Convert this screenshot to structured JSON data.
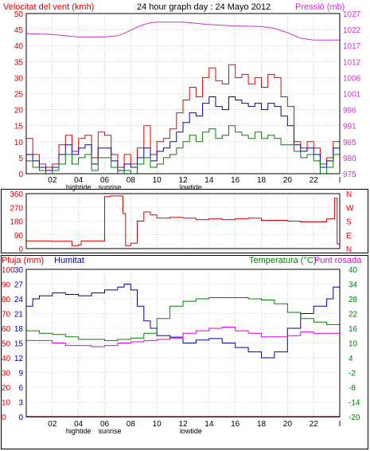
{
  "header": {
    "left_label": "Velocitat del vent (kmh)",
    "title": "24 hour graph day : 24 Mayo 2012",
    "right_label": "Pressió (mb)"
  },
  "bottom_header": {
    "pluja_label": "Pluja (mm)",
    "humitat_label": "Humitat",
    "temperatura_label": "Temperatura (°C)",
    "punt_rosada_label": "Punt rosada"
  },
  "colors": {
    "wind_gust": "#ee0000",
    "wind_avg": "#0000cc",
    "wind_low": "#008000",
    "pressure": "#cc33cc",
    "direction": "#dd0000",
    "humidity": "#0000aa",
    "temperature": "#008000",
    "dewpoint": "#dd00dd",
    "rain": "#dd0000",
    "grid": "#a8a8a8",
    "frame": "#000000"
  },
  "x_axis": {
    "tick_labels": [
      "02",
      "04",
      "06",
      "08",
      "10",
      "12",
      "14",
      "16",
      "18",
      "20",
      "22",
      "I"
    ],
    "tick_hours": [
      2,
      4,
      6,
      8,
      10,
      12,
      14,
      16,
      18,
      20,
      22,
      24
    ],
    "markers": [
      {
        "label": "hightide",
        "hour": 4.0
      },
      {
        "label": "sunrise",
        "hour": 6.4
      },
      {
        "label": "lowtide",
        "hour": 12.6
      }
    ]
  },
  "chart_data": [
    {
      "type": "line",
      "x_range": [
        0,
        24
      ],
      "left_axis": {
        "ylim": [
          0,
          50
        ],
        "ticks": [
          "0",
          "5",
          "10",
          "15",
          "20",
          "25",
          "30",
          "35",
          "40",
          "45",
          "50"
        ]
      },
      "right_axis": {
        "ylim": [
          974,
          1026
        ],
        "ticks": [
          "975",
          "980",
          "985",
          "991",
          "996",
          "1001",
          "1006",
          "1012",
          "1017",
          "1022",
          "1027"
        ]
      },
      "series": [
        {
          "axis": "right",
          "x": [
            0,
            2,
            4,
            6,
            7,
            7.5,
            8,
            8.5,
            9,
            9.5,
            10,
            12,
            14,
            16,
            18,
            19,
            20,
            21,
            22,
            23,
            24
          ],
          "values": [
            1019.5,
            1019.2,
            1018.4,
            1018.4,
            1018.8,
            1019.6,
            1020.6,
            1021.6,
            1022.4,
            1023.0,
            1023.2,
            1023.2,
            1022.4,
            1022.0,
            1021.8,
            1021.2,
            1019.8,
            1018.0,
            1017.4,
            1017.4,
            1017.4
          ]
        },
        {
          "axis": "left",
          "x": [
            0,
            0.5,
            1,
            1.5,
            2,
            2.5,
            3,
            3.5,
            4,
            4.5,
            5,
            5.5,
            6,
            6.5,
            7,
            7.5,
            8,
            8.5,
            9,
            9.5,
            10,
            10.5,
            11,
            11.5,
            12,
            12.5,
            13,
            13.5,
            14,
            14.5,
            15,
            15.5,
            16,
            16.5,
            17,
            17.5,
            18,
            18.5,
            19,
            19.5,
            20,
            20.5,
            21,
            21.5,
            22,
            22.5,
            23,
            23.5,
            24
          ],
          "values": [
            11,
            6,
            3,
            2,
            3,
            9,
            12,
            7,
            11,
            12,
            5,
            13,
            12,
            6,
            2,
            6,
            3,
            8,
            15,
            6,
            10,
            11,
            14,
            19,
            23,
            27,
            24,
            30,
            33,
            29,
            28,
            34,
            30,
            31,
            28,
            30,
            27,
            31,
            30,
            24,
            21,
            10,
            8,
            10,
            8,
            3,
            5,
            10,
            14
          ]
        },
        {
          "axis": "left",
          "x": [
            0,
            0.5,
            1,
            1.5,
            2,
            2.5,
            3,
            3.5,
            4,
            4.5,
            5,
            5.5,
            6,
            6.5,
            7,
            7.5,
            8,
            8.5,
            9,
            9.5,
            10,
            10.5,
            11,
            11.5,
            12,
            12.5,
            13,
            13.5,
            14,
            14.5,
            15,
            15.5,
            16,
            16.5,
            17,
            17.5,
            18,
            18.5,
            19,
            19.5,
            20,
            20.5,
            21,
            21.5,
            22,
            22.5,
            23,
            23.5,
            24
          ],
          "values": [
            6,
            4,
            2,
            1,
            2,
            6,
            9,
            6,
            8,
            9,
            3,
            8,
            8,
            4,
            1,
            3,
            2,
            5,
            8,
            4,
            7,
            8,
            10,
            13,
            16,
            19,
            18,
            22,
            24,
            21,
            20,
            24,
            23,
            22,
            21,
            22,
            20,
            22,
            21,
            18,
            15,
            9,
            7,
            8,
            6,
            2,
            4,
            8,
            11
          ]
        },
        {
          "axis": "left",
          "x": [
            0,
            0.5,
            1,
            1.5,
            2,
            2.5,
            3,
            3.5,
            4,
            4.5,
            5,
            5.5,
            6,
            6.5,
            7,
            7.5,
            8,
            8.5,
            9,
            9.5,
            10,
            10.5,
            11,
            11.5,
            12,
            12.5,
            13,
            13.5,
            14,
            14.5,
            15,
            15.5,
            16,
            16.5,
            17,
            17.5,
            18,
            18.5,
            19,
            19.5,
            20,
            20.5,
            21,
            21.5,
            22,
            22.5,
            23,
            23.5,
            24
          ],
          "values": [
            4,
            2,
            1,
            0,
            1,
            3,
            6,
            3,
            5,
            6,
            1,
            5,
            5,
            2,
            0,
            1,
            0,
            3,
            5,
            2,
            3,
            5,
            6,
            8,
            10,
            12,
            10,
            13,
            14,
            11,
            12,
            15,
            13,
            12,
            11,
            13,
            11,
            12,
            11,
            9,
            9,
            7,
            5,
            6,
            4,
            0,
            2,
            6,
            8
          ]
        }
      ]
    },
    {
      "type": "line",
      "x_range": [
        0,
        24
      ],
      "left_axis": {
        "ylim": [
          0,
          360
        ],
        "ticks": [
          "0",
          "90",
          "180",
          "270",
          "360"
        ]
      },
      "right_labels": [
        "N",
        "W",
        "S",
        "E",
        "N"
      ],
      "series": [
        {
          "x": [
            0,
            2,
            3.5,
            4,
            4.2,
            5,
            6,
            6.4,
            6.5,
            7.2,
            7.4,
            7.6,
            8,
            8.5,
            9,
            9.5,
            10,
            11,
            12,
            13,
            14,
            15,
            16,
            17,
            18,
            19,
            20,
            21,
            22,
            23,
            23.6,
            23.8,
            24
          ],
          "values": [
            50,
            48,
            20,
            25,
            50,
            50,
            340,
            345,
            345,
            345,
            230,
            20,
            35,
            180,
            240,
            220,
            200,
            205,
            200,
            190,
            195,
            190,
            195,
            200,
            185,
            185,
            180,
            175,
            175,
            195,
            330,
            30,
            28
          ]
        }
      ]
    },
    {
      "type": "line",
      "x_range": [
        0,
        24
      ],
      "left_axis_pluja": {
        "ylim": [
          0,
          100
        ],
        "ticks": [
          "0",
          "10",
          "20",
          "30",
          "40",
          "50",
          "60",
          "70",
          "80",
          "90",
          "100"
        ]
      },
      "left_axis_humitat": {
        "ylim": [
          0,
          30
        ],
        "ticks": [
          "0",
          "3",
          "6",
          "9",
          "12",
          "15",
          "18",
          "21",
          "24",
          "27",
          "30"
        ]
      },
      "right_axis": {
        "ylim": [
          -20,
          40
        ],
        "ticks": [
          "-20",
          "-14",
          "-8",
          "-2",
          "4",
          "10",
          "16",
          "22",
          "28",
          "34",
          "40"
        ]
      },
      "series": [
        {
          "x": [
            0,
            0.5,
            1,
            2,
            3,
            4,
            5,
            6,
            7,
            7.5,
            8,
            8.5,
            9,
            9.5,
            10,
            11,
            12,
            13,
            14,
            15,
            16,
            17,
            18,
            19,
            20,
            21,
            22,
            23,
            23.5,
            24
          ],
          "values": [
            75,
            80,
            82,
            84,
            83,
            82,
            84,
            86,
            88,
            90,
            86,
            75,
            65,
            60,
            55,
            54,
            50,
            52,
            53,
            50,
            47,
            44,
            40,
            44,
            60,
            70,
            75,
            80,
            88,
            86
          ]
        },
        {
          "x": [
            0,
            1,
            2,
            3,
            4,
            5,
            6,
            7,
            8,
            9,
            10,
            11,
            12,
            13,
            14,
            15,
            16,
            17,
            18,
            19,
            20,
            21,
            22,
            23,
            24
          ],
          "values": [
            15,
            14,
            13.5,
            12.5,
            11.5,
            11.5,
            11,
            11.5,
            12,
            14,
            20,
            25,
            27,
            28,
            28.5,
            28.5,
            28.5,
            28,
            27.5,
            26,
            22.5,
            20,
            18.5,
            17.5,
            17
          ]
        },
        {
          "x": [
            0,
            1,
            2,
            3,
            4,
            5,
            6,
            7,
            8,
            9,
            10,
            11,
            12,
            13,
            14,
            15,
            16,
            17,
            18,
            19,
            20,
            21,
            22,
            23,
            24
          ],
          "values": [
            11,
            11,
            10,
            9,
            9,
            8.5,
            9,
            10,
            10.5,
            11,
            11.5,
            12,
            14,
            15,
            16,
            16.5,
            15,
            14,
            12.5,
            12.5,
            13,
            14.5,
            14,
            14,
            13
          ]
        },
        {
          "x": [
            0,
            24
          ],
          "values": [
            0,
            0
          ]
        }
      ]
    }
  ]
}
